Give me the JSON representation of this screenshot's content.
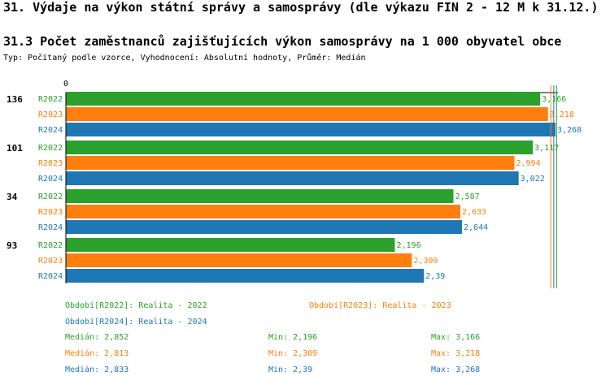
{
  "header": {
    "title": "31. Výdaje na výkon státní správy a samosprávy (dle výkazu FIN 2 - 12 M k 31.12.)",
    "subtitle": "31.3 Počet zaměstnanců zajišťujících výkon samosprávy na 1 000 obyvatel obce",
    "type_line": "Typ: Počítaný podle vzorce, Vyhodnocení: Absolutní hodnoty, Průměr: Medián"
  },
  "colors": {
    "R2022": "#2ca02c",
    "R2023": "#ff7f0e",
    "R2024": "#1f77b4"
  },
  "chart_data": {
    "type": "bar",
    "orientation": "horizontal",
    "axis_zero_label": "0",
    "categories": [
      "136",
      "101",
      "34",
      "93"
    ],
    "series": [
      {
        "name": "R2022",
        "values": [
          3.166,
          3.117,
          2.587,
          2.196
        ],
        "labels": [
          "3,166",
          "3,117",
          "2,587",
          "2,196"
        ]
      },
      {
        "name": "R2023",
        "values": [
          3.218,
          2.994,
          2.633,
          2.309
        ],
        "labels": [
          "3,218",
          "2,994",
          "2,633",
          "2,309"
        ]
      },
      {
        "name": "R2024",
        "values": [
          3.268,
          3.022,
          2.644,
          2.39
        ],
        "labels": [
          "3,268",
          "3,022",
          "2,644",
          "2,39"
        ]
      }
    ],
    "xlim": [
      0,
      3.5
    ],
    "median_lines": [
      2.852,
      2.813,
      2.833
    ]
  },
  "legend": {
    "periods": [
      {
        "key": "R2022",
        "label": "Období[R2022]: Realita - 2022"
      },
      {
        "key": "R2023",
        "label": "Období[R2023]: Realita - 2023"
      },
      {
        "key": "R2024",
        "label": "Období[R2024]: Realita - 2024"
      }
    ],
    "stats": [
      {
        "key": "R2022",
        "median": "Medián: 2,852",
        "min": "Min: 2,196",
        "max": "Max: 3,166"
      },
      {
        "key": "R2023",
        "median": "Medián: 2,813",
        "min": "Min: 2,309",
        "max": "Max: 3,218"
      },
      {
        "key": "R2024",
        "median": "Medián: 2,833",
        "min": "Min: 2,39",
        "max": "Max: 3,268"
      }
    ]
  }
}
